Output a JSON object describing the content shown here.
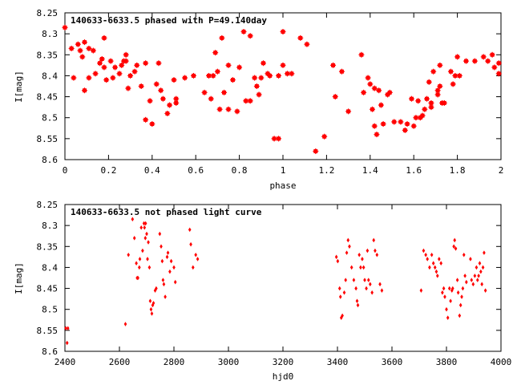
{
  "chart_data": [
    {
      "type": "scatter",
      "title": "140633-6633.5 phased with P=49.140day",
      "xlabel": "phase",
      "ylabel": "I[mag]",
      "xlim": [
        0,
        2
      ],
      "ylim": [
        8.6,
        8.25
      ],
      "y_inverted": true,
      "xticks": [
        "0",
        "0.2",
        "0.4",
        "0.6",
        "0.8",
        "1",
        "1.2",
        "1.4",
        "1.6",
        "1.8",
        "2"
      ],
      "yticks": [
        "8.25",
        "8.3",
        "8.35",
        "8.4",
        "8.45",
        "8.5",
        "8.55",
        "8.6"
      ],
      "marker_color": "#ff0000",
      "marker": "filled-square-plus",
      "series": [
        {
          "points": [
            [
              0.0,
              8.285
            ],
            [
              0.03,
              8.335
            ],
            [
              0.04,
              8.405
            ],
            [
              0.06,
              8.325
            ],
            [
              0.07,
              8.34
            ],
            [
              0.08,
              8.355
            ],
            [
              0.09,
              8.32
            ],
            [
              0.09,
              8.435
            ],
            [
              0.11,
              8.335
            ],
            [
              0.11,
              8.405
            ],
            [
              0.13,
              8.34
            ],
            [
              0.14,
              8.395
            ],
            [
              0.16,
              8.37
            ],
            [
              0.17,
              8.36
            ],
            [
              0.18,
              8.31
            ],
            [
              0.18,
              8.38
            ],
            [
              0.19,
              8.41
            ],
            [
              0.21,
              8.365
            ],
            [
              0.22,
              8.405
            ],
            [
              0.23,
              8.38
            ],
            [
              0.25,
              8.395
            ],
            [
              0.26,
              8.375
            ],
            [
              0.27,
              8.365
            ],
            [
              0.28,
              8.35
            ],
            [
              0.28,
              8.365
            ],
            [
              0.29,
              8.43
            ],
            [
              0.3,
              8.4
            ],
            [
              0.32,
              8.39
            ],
            [
              0.33,
              8.375
            ],
            [
              0.35,
              8.425
            ],
            [
              0.37,
              8.505
            ],
            [
              0.37,
              8.37
            ],
            [
              0.39,
              8.46
            ],
            [
              0.4,
              8.515
            ],
            [
              0.42,
              8.42
            ],
            [
              0.43,
              8.37
            ],
            [
              0.44,
              8.435
            ],
            [
              0.45,
              8.455
            ],
            [
              0.47,
              8.49
            ],
            [
              0.48,
              8.47
            ],
            [
              0.5,
              8.41
            ],
            [
              0.51,
              8.455
            ],
            [
              0.51,
              8.465
            ],
            [
              0.55,
              8.405
            ],
            [
              0.59,
              8.4
            ],
            [
              0.64,
              8.44
            ],
            [
              0.66,
              8.4
            ],
            [
              0.67,
              8.455
            ],
            [
              0.68,
              8.4
            ],
            [
              0.69,
              8.345
            ],
            [
              0.7,
              8.39
            ],
            [
              0.71,
              8.48
            ],
            [
              0.72,
              8.31
            ],
            [
              0.73,
              8.44
            ],
            [
              0.75,
              8.48
            ],
            [
              0.75,
              8.375
            ],
            [
              0.77,
              8.41
            ],
            [
              0.79,
              8.485
            ],
            [
              0.8,
              8.38
            ],
            [
              0.82,
              8.295
            ],
            [
              0.83,
              8.46
            ],
            [
              0.85,
              8.46
            ],
            [
              0.85,
              8.305
            ],
            [
              0.87,
              8.405
            ],
            [
              0.88,
              8.425
            ],
            [
              0.89,
              8.445
            ],
            [
              0.9,
              8.405
            ],
            [
              0.91,
              8.37
            ],
            [
              0.93,
              8.395
            ],
            [
              0.94,
              8.4
            ],
            [
              0.96,
              8.55
            ],
            [
              0.98,
              8.55
            ],
            [
              0.98,
              8.4
            ],
            [
              1.0,
              8.295
            ],
            [
              1.0,
              8.375
            ],
            [
              1.02,
              8.395
            ],
            [
              1.04,
              8.395
            ],
            [
              1.08,
              8.31
            ],
            [
              1.11,
              8.325
            ],
            [
              1.15,
              8.58
            ],
            [
              1.19,
              8.545
            ],
            [
              1.23,
              8.375
            ],
            [
              1.24,
              8.45
            ],
            [
              1.27,
              8.39
            ],
            [
              1.3,
              8.485
            ],
            [
              1.36,
              8.35
            ],
            [
              1.37,
              8.44
            ],
            [
              1.39,
              8.405
            ],
            [
              1.4,
              8.42
            ],
            [
              1.41,
              8.48
            ],
            [
              1.42,
              8.43
            ],
            [
              1.42,
              8.52
            ],
            [
              1.43,
              8.54
            ],
            [
              1.44,
              8.435
            ],
            [
              1.45,
              8.47
            ],
            [
              1.46,
              8.515
            ],
            [
              1.48,
              8.445
            ],
            [
              1.49,
              8.44
            ],
            [
              1.51,
              8.51
            ],
            [
              1.54,
              8.51
            ],
            [
              1.56,
              8.53
            ],
            [
              1.57,
              8.515
            ],
            [
              1.59,
              8.455
            ],
            [
              1.6,
              8.52
            ],
            [
              1.61,
              8.5
            ],
            [
              1.62,
              8.46
            ],
            [
              1.63,
              8.5
            ],
            [
              1.64,
              8.495
            ],
            [
              1.65,
              8.48
            ],
            [
              1.66,
              8.455
            ],
            [
              1.67,
              8.415
            ],
            [
              1.68,
              8.465
            ],
            [
              1.68,
              8.475
            ],
            [
              1.69,
              8.39
            ],
            [
              1.71,
              8.435
            ],
            [
              1.71,
              8.445
            ],
            [
              1.72,
              8.425
            ],
            [
              1.72,
              8.375
            ],
            [
              1.73,
              8.465
            ],
            [
              1.74,
              8.465
            ],
            [
              1.77,
              8.39
            ],
            [
              1.78,
              8.42
            ],
            [
              1.79,
              8.4
            ],
            [
              1.8,
              8.355
            ],
            [
              1.81,
              8.4
            ],
            [
              1.84,
              8.365
            ],
            [
              1.88,
              8.365
            ],
            [
              1.92,
              8.355
            ],
            [
              1.94,
              8.365
            ],
            [
              1.96,
              8.35
            ],
            [
              1.97,
              8.38
            ],
            [
              1.99,
              8.37
            ],
            [
              1.99,
              8.395
            ]
          ]
        }
      ]
    },
    {
      "type": "scatter",
      "title": "140633-6633.5 not phased light curve",
      "xlabel": "hjd0",
      "ylabel": "I[mag]",
      "xlim": [
        2400,
        4000
      ],
      "ylim": [
        8.6,
        8.25
      ],
      "y_inverted": true,
      "xticks": [
        "2400",
        "2600",
        "2800",
        "3000",
        "3200",
        "3400",
        "3600",
        "3800",
        "4000"
      ],
      "yticks": [
        "8.25",
        "8.3",
        "8.35",
        "8.4",
        "8.45",
        "8.5",
        "8.55",
        "8.6"
      ],
      "marker_color": "#ff0000",
      "marker": "small-diamond",
      "series": [
        {
          "points": [
            [
              2403,
              8.545
            ],
            [
              2408,
              8.58
            ],
            [
              2411,
              8.545
            ],
            [
              2622,
              8.535
            ],
            [
              2633,
              8.37
            ],
            [
              2648,
              8.285
            ],
            [
              2655,
              8.33
            ],
            [
              2662,
              8.39
            ],
            [
              2665,
              8.425
            ],
            [
              2668,
              8.425
            ],
            [
              2673,
              8.4
            ],
            [
              2675,
              8.38
            ],
            [
              2680,
              8.305
            ],
            [
              2685,
              8.36
            ],
            [
              2690,
              8.295
            ],
            [
              2692,
              8.305
            ],
            [
              2695,
              8.33
            ],
            [
              2696,
              8.295
            ],
            [
              2700,
              8.32
            ],
            [
              2703,
              8.38
            ],
            [
              2706,
              8.34
            ],
            [
              2710,
              8.4
            ],
            [
              2713,
              8.48
            ],
            [
              2716,
              8.5
            ],
            [
              2719,
              8.51
            ],
            [
              2722,
              8.49
            ],
            [
              2725,
              8.485
            ],
            [
              2731,
              8.455
            ],
            [
              2735,
              8.45
            ],
            [
              2748,
              8.32
            ],
            [
              2753,
              8.35
            ],
            [
              2757,
              8.385
            ],
            [
              2760,
              8.43
            ],
            [
              2763,
              8.44
            ],
            [
              2768,
              8.47
            ],
            [
              2775,
              8.375
            ],
            [
              2778,
              8.365
            ],
            [
              2785,
              8.41
            ],
            [
              2790,
              8.385
            ],
            [
              2800,
              8.4
            ],
            [
              2805,
              8.435
            ],
            [
              2858,
              8.31
            ],
            [
              2862,
              8.345
            ],
            [
              2870,
              8.4
            ],
            [
              2880,
              8.37
            ],
            [
              2887,
              8.38
            ],
            [
              3396,
              8.375
            ],
            [
              3401,
              8.385
            ],
            [
              3408,
              8.45
            ],
            [
              3411,
              8.47
            ],
            [
              3414,
              8.52
            ],
            [
              3418,
              8.515
            ],
            [
              3425,
              8.46
            ],
            [
              3430,
              8.43
            ],
            [
              3434,
              8.365
            ],
            [
              3439,
              8.335
            ],
            [
              3444,
              8.35
            ],
            [
              3452,
              8.4
            ],
            [
              3460,
              8.43
            ],
            [
              3468,
              8.45
            ],
            [
              3472,
              8.48
            ],
            [
              3475,
              8.49
            ],
            [
              3480,
              8.37
            ],
            [
              3485,
              8.4
            ],
            [
              3491,
              8.38
            ],
            [
              3496,
              8.4
            ],
            [
              3500,
              8.43
            ],
            [
              3506,
              8.45
            ],
            [
              3510,
              8.36
            ],
            [
              3514,
              8.43
            ],
            [
              3520,
              8.44
            ],
            [
              3527,
              8.46
            ],
            [
              3533,
              8.335
            ],
            [
              3538,
              8.36
            ],
            [
              3545,
              8.37
            ],
            [
              3556,
              8.44
            ],
            [
              3563,
              8.455
            ],
            [
              3707,
              8.455
            ],
            [
              3716,
              8.36
            ],
            [
              3724,
              8.37
            ],
            [
              3730,
              8.38
            ],
            [
              3738,
              8.4
            ],
            [
              3746,
              8.37
            ],
            [
              3752,
              8.39
            ],
            [
              3758,
              8.4
            ],
            [
              3763,
              8.41
            ],
            [
              3767,
              8.42
            ],
            [
              3773,
              8.38
            ],
            [
              3780,
              8.39
            ],
            [
              3785,
              8.46
            ],
            [
              3790,
              8.45
            ],
            [
              3794,
              8.47
            ],
            [
              3800,
              8.5
            ],
            [
              3805,
              8.52
            ],
            [
              3811,
              8.45
            ],
            [
              3815,
              8.48
            ],
            [
              3820,
              8.455
            ],
            [
              3823,
              8.45
            ],
            [
              3827,
              8.35
            ],
            [
              3830,
              8.335
            ],
            [
              3834,
              8.355
            ],
            [
              3840,
              8.43
            ],
            [
              3843,
              8.46
            ],
            [
              3848,
              8.515
            ],
            [
              3852,
              8.49
            ],
            [
              3856,
              8.47
            ],
            [
              3860,
              8.45
            ],
            [
              3864,
              8.37
            ],
            [
              3868,
              8.42
            ],
            [
              3873,
              8.435
            ],
            [
              3888,
              8.38
            ],
            [
              3892,
              8.43
            ],
            [
              3898,
              8.44
            ],
            [
              3904,
              8.42
            ],
            [
              3910,
              8.4
            ],
            [
              3914,
              8.43
            ],
            [
              3918,
              8.42
            ],
            [
              3922,
              8.39
            ],
            [
              3926,
              8.41
            ],
            [
              3930,
              8.44
            ],
            [
              3934,
              8.4
            ],
            [
              3938,
              8.365
            ],
            [
              3943,
              8.455
            ]
          ]
        }
      ]
    }
  ]
}
